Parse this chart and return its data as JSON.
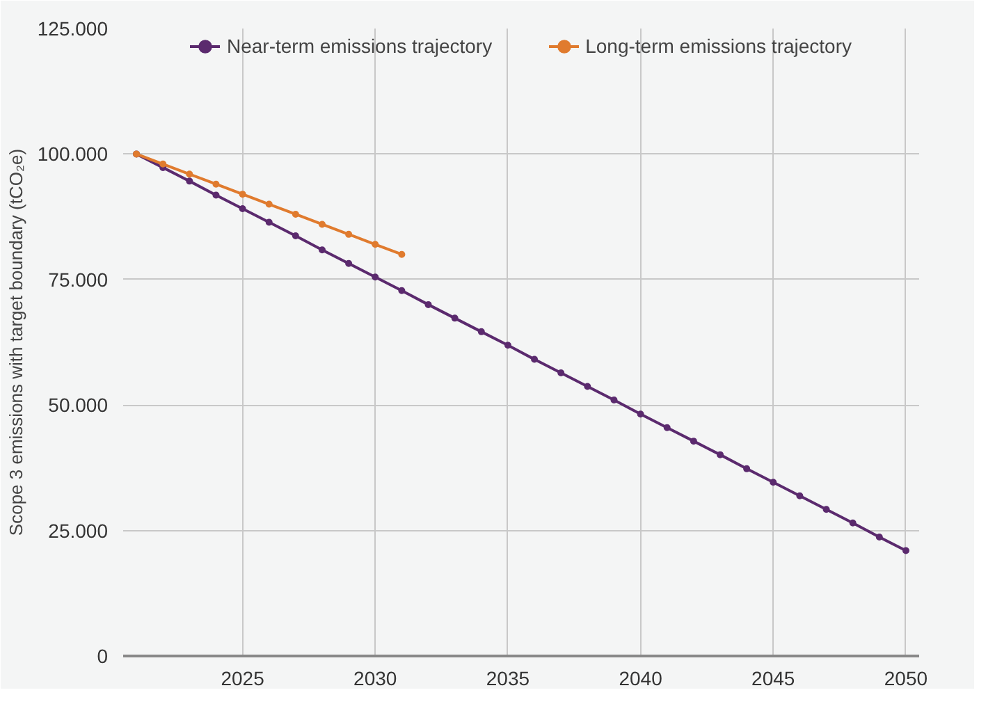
{
  "chart_data": {
    "type": "line",
    "ylabel": "Scope 3 emissions with target boundary (tCO₂e)",
    "x": [
      2021,
      2022,
      2023,
      2024,
      2025,
      2026,
      2027,
      2028,
      2029,
      2030,
      2031,
      2032,
      2033,
      2034,
      2035,
      2036,
      2037,
      2038,
      2039,
      2040,
      2041,
      2042,
      2043,
      2044,
      2045,
      2046,
      2047,
      2048,
      2049,
      2050
    ],
    "series": [
      {
        "name": "Near-term emissions trajectory",
        "color": "#5b2a6e",
        "values": [
          100000,
          97300,
          94600,
          91800,
          89100,
          86400,
          83700,
          80900,
          78200,
          75500,
          72800,
          70000,
          67300,
          64600,
          61900,
          59100,
          56400,
          53700,
          51000,
          48200,
          45500,
          42800,
          40100,
          37300,
          34600,
          31900,
          29200,
          26500,
          23700,
          21000
        ]
      },
      {
        "name": "Long-term emissions trajectory",
        "color": "#e07b2e",
        "x": [
          2021,
          2022,
          2023,
          2024,
          2025,
          2026,
          2027,
          2028,
          2029,
          2030,
          2031
        ],
        "values": [
          100000,
          98000,
          96000,
          94000,
          92000,
          90000,
          88000,
          86000,
          84000,
          82000,
          80000
        ]
      }
    ],
    "xlim": [
      2020.5,
      2050.5
    ],
    "xticks": [
      2025,
      2030,
      2035,
      2040,
      2045,
      2050
    ],
    "ylim": [
      0,
      125000
    ],
    "yticks": [
      0,
      {
        "value": 25000,
        "label": "25.000"
      },
      {
        "value": 50000,
        "label": "50.000"
      },
      {
        "value": 75000,
        "label": "75.000"
      },
      {
        "value": 100000,
        "label": "100.000"
      },
      {
        "value": 125000,
        "label": "125.000"
      }
    ],
    "grid": true,
    "legend": "top",
    "marker": "circle",
    "line_style": "solid"
  }
}
